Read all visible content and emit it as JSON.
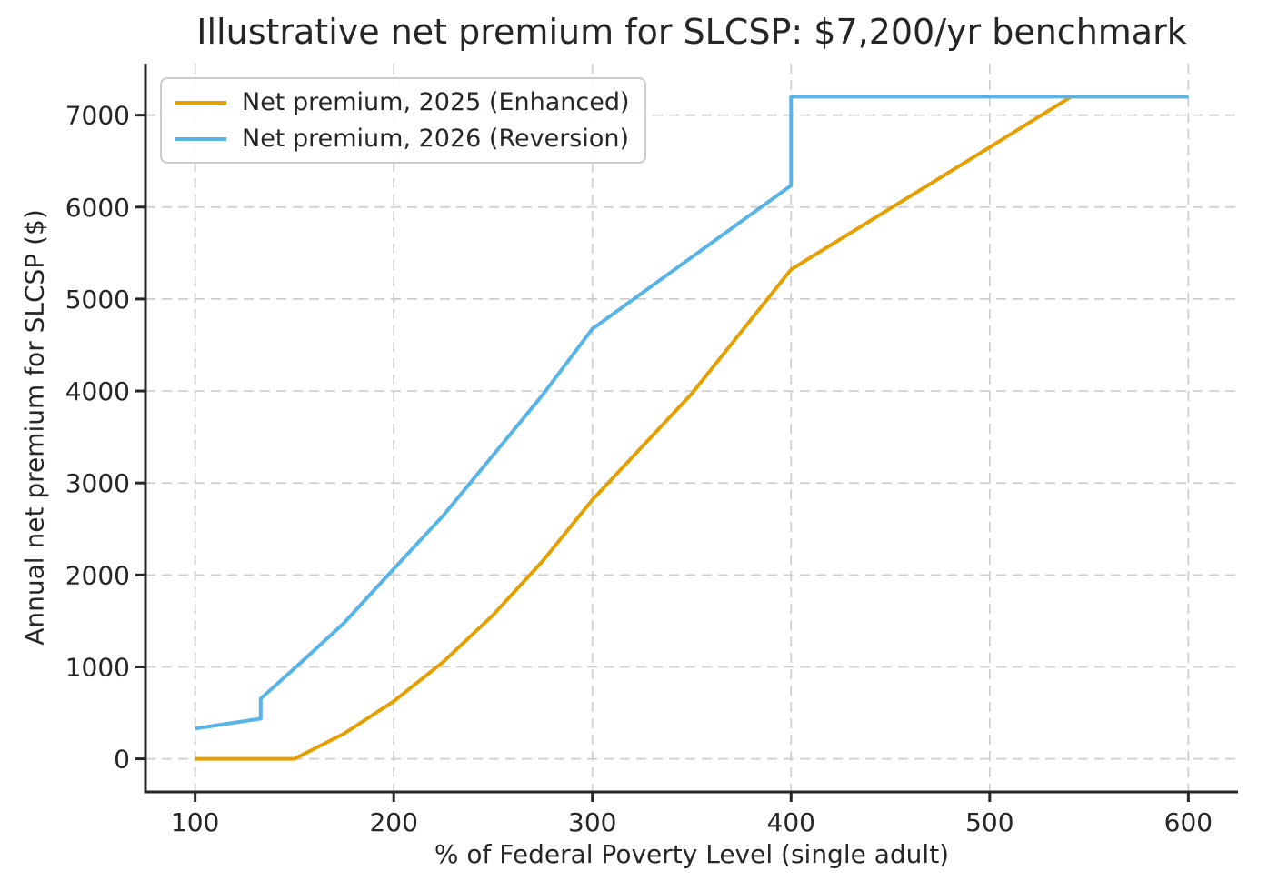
{
  "figure": {
    "background": "#ffffff",
    "text_color": "#262626",
    "spine_color": "#262626",
    "grid_color": "#cdcdcd"
  },
  "chart_data": {
    "type": "line",
    "title": "Illustrative net premium for SLCSP: $7,200/yr benchmark",
    "xlabel": "% of Federal Poverty Level (single adult)",
    "ylabel": "Annual net premium for SLCSP ($)",
    "xlim": [
      75,
      625
    ],
    "ylim": [
      -360,
      7560
    ],
    "x_ticks": [
      100,
      200,
      300,
      400,
      500,
      600
    ],
    "y_ticks": [
      0,
      1000,
      2000,
      3000,
      4000,
      5000,
      6000,
      7000
    ],
    "grid": true,
    "grid_style": "dashed",
    "legend_position": "upper-left",
    "benchmark_annual_premium": 7200,
    "series": [
      {
        "name": "Net premium, 2025 (Enhanced)",
        "color": "#E69F00",
        "line_width": 4,
        "x": [
          100,
          150,
          175,
          200,
          225,
          250,
          275,
          300,
          350,
          400,
          450,
          500,
          541,
          600
        ],
        "y": [
          0,
          0,
          274,
          626,
          1056,
          1565,
          2152,
          2817,
          3971,
          5321,
          5986,
          6651,
          7200,
          7200
        ]
      },
      {
        "name": "Net premium, 2026 (Reversion)",
        "color": "#56B4E9",
        "line_width": 4,
        "x": [
          100,
          133,
          133,
          150,
          175,
          200,
          225,
          250,
          275,
          300,
          400,
          400,
          600
        ],
        "y": [
          329,
          437,
          654,
          984,
          1478,
          2066,
          2648,
          3302,
          3959,
          4676,
          6235,
          7200,
          7200
        ]
      }
    ]
  }
}
